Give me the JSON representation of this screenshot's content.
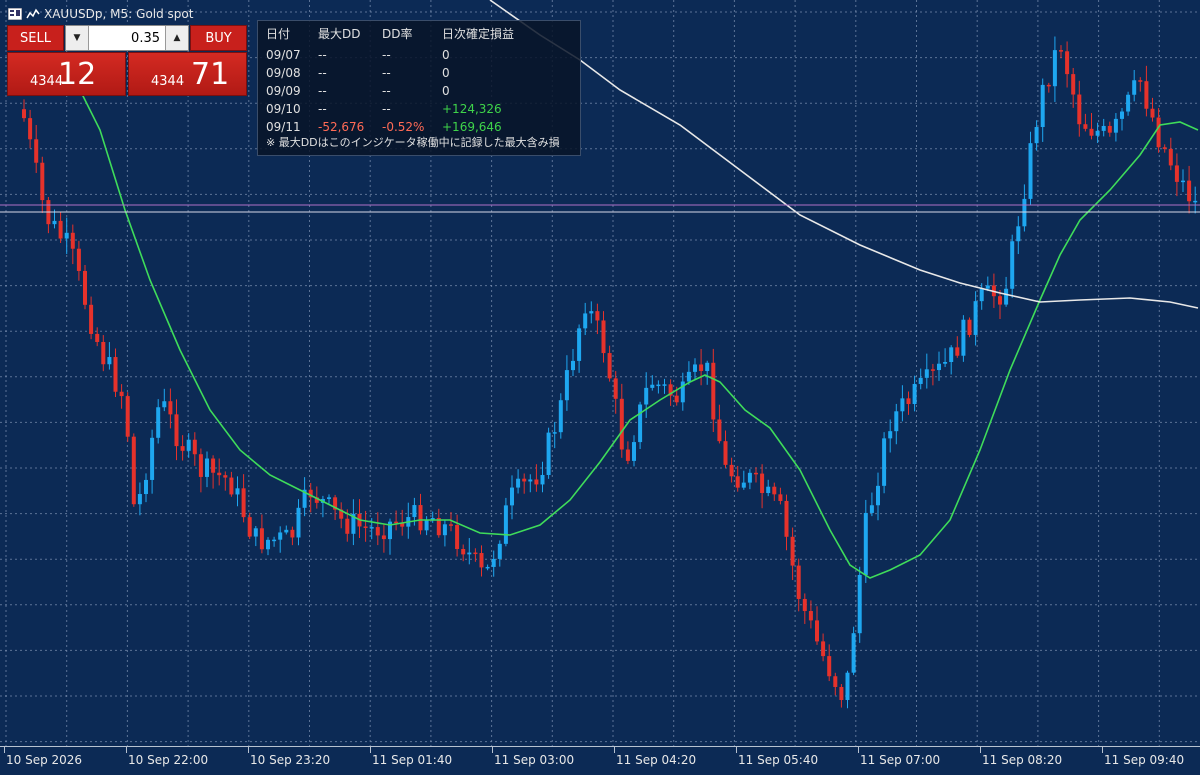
{
  "title": {
    "symbol": "XAUUSDp, M5:",
    "description": "Gold spot"
  },
  "trade_panel": {
    "sell_label": "SELL",
    "buy_label": "BUY",
    "lot_value": "0.35",
    "sell_price_prefix": "4344",
    "sell_price_big": "12",
    "buy_price_prefix": "4344",
    "buy_price_big": "71"
  },
  "dd_panel": {
    "headers": [
      "日付",
      "最大DD",
      "DD率",
      "日次確定損益"
    ],
    "rows": [
      {
        "date": "09/07",
        "max_dd": "--",
        "dd_rate": "--",
        "pnl": "0",
        "status": "neutral"
      },
      {
        "date": "09/08",
        "max_dd": "--",
        "dd_rate": "--",
        "pnl": "0",
        "status": "neutral"
      },
      {
        "date": "09/09",
        "max_dd": "--",
        "dd_rate": "--",
        "pnl": "0",
        "status": "neutral"
      },
      {
        "date": "09/10",
        "max_dd": "--",
        "dd_rate": "--",
        "pnl": "+124,326",
        "status": "positive"
      },
      {
        "date": "09/11",
        "max_dd": "-52,676",
        "dd_rate": "-0.52%",
        "pnl": "+169,646",
        "status": "positive_dd"
      }
    ],
    "note": "※ 最大DDはこのインジケータ稼働中に記録した最大含み損"
  },
  "colors": {
    "background": "#0c2a55",
    "grid": "#7f93b3",
    "bull": "#1ea7f0",
    "bear": "#e6322b",
    "ma_fast": "#3fdc5a",
    "ma_slow": "#e8e8e8",
    "price_line_upper": "#b070c8",
    "price_line_lower": "#d8d8e8",
    "negative_text": "#ff6a55",
    "positive_text": "#3fd44a"
  },
  "chart_data": {
    "type": "candlestick",
    "x_ticks": [
      "10 Sep 2026",
      "10 Sep 22:00",
      "10 Sep 23:20",
      "11 Sep 01:40",
      "11 Sep 03:00",
      "11 Sep 04:20",
      "11 Sep 05:40",
      "11 Sep 07:00",
      "11 Sep 08:20",
      "11 Sep 09:40"
    ],
    "grid": true,
    "indicators": [
      "moving-average-fast",
      "moving-average-slow"
    ]
  }
}
